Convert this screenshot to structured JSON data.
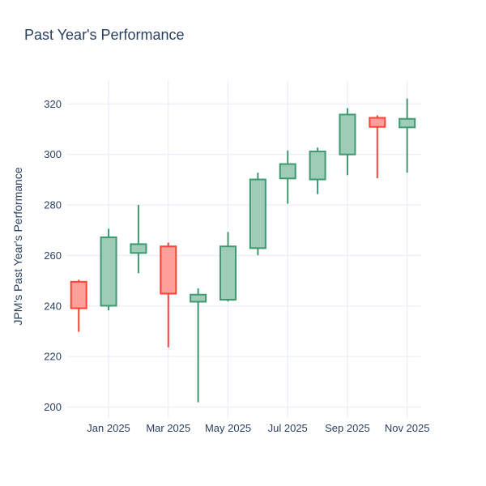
{
  "title": "Past Year's Performance",
  "chart_data": {
    "type": "candlestick",
    "title": "Past Year's Performance",
    "xlabel": "",
    "ylabel": "JPM's Past Year's Performance",
    "x_tick_labels": [
      "Jan 2025",
      "Mar 2025",
      "May 2025",
      "Jul 2025",
      "Sep 2025",
      "Nov 2025"
    ],
    "y_ticks": [
      200,
      220,
      240,
      260,
      280,
      300,
      320
    ],
    "ylim": [
      197.6,
      329.4
    ],
    "grid": true,
    "legend": false,
    "colors": {
      "increasing_line": "#3D9970",
      "increasing_fill": "#9ECCB7",
      "decreasing_line": "#FF4136",
      "decreasing_fill": "#FF9F9A",
      "text": "#2a3f5f",
      "gridline": "#EBF0F8",
      "background": "#FFFFFF"
    },
    "candles": [
      {
        "month": "Dec 2024",
        "open": 249.6,
        "high": 250.4,
        "low": 229.8,
        "close": 239.1,
        "direction": "decreasing"
      },
      {
        "month": "Jan 2025",
        "open": 240.1,
        "high": 270.6,
        "low": 238.3,
        "close": 267.2,
        "direction": "increasing"
      },
      {
        "month": "Feb 2025",
        "open": 261.0,
        "high": 280.0,
        "low": 253.0,
        "close": 264.5,
        "direction": "increasing"
      },
      {
        "month": "Mar 2025",
        "open": 263.6,
        "high": 265.1,
        "low": 223.6,
        "close": 244.9,
        "direction": "decreasing"
      },
      {
        "month": "Apr 2025",
        "open": 241.7,
        "high": 247.0,
        "low": 201.9,
        "close": 244.5,
        "direction": "increasing"
      },
      {
        "month": "May 2025",
        "open": 242.5,
        "high": 269.3,
        "low": 241.8,
        "close": 263.6,
        "direction": "increasing"
      },
      {
        "month": "Jun 2025",
        "open": 262.9,
        "high": 292.8,
        "low": 260.1,
        "close": 290.1,
        "direction": "increasing"
      },
      {
        "month": "Jul 2025",
        "open": 290.5,
        "high": 301.6,
        "low": 280.5,
        "close": 296.2,
        "direction": "increasing"
      },
      {
        "month": "Aug 2025",
        "open": 290.1,
        "high": 302.7,
        "low": 284.3,
        "close": 301.2,
        "direction": "increasing"
      },
      {
        "month": "Sep 2025",
        "open": 300.0,
        "high": 318.3,
        "low": 291.8,
        "close": 315.8,
        "direction": "increasing"
      },
      {
        "month": "Oct 2025",
        "open": 314.5,
        "high": 315.5,
        "low": 290.6,
        "close": 310.9,
        "direction": "decreasing"
      },
      {
        "month": "Nov 2025",
        "open": 310.7,
        "high": 322.1,
        "low": 292.8,
        "close": 314.1,
        "direction": "increasing"
      }
    ]
  }
}
